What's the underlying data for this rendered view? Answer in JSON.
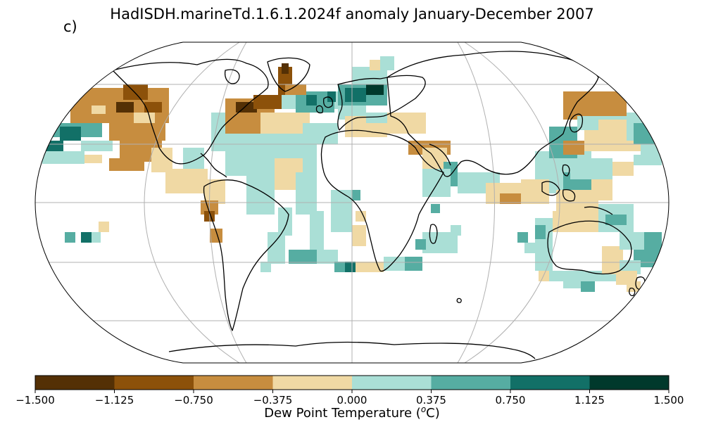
{
  "title": "HadISDH.marineTd.1.6.1.2024f anomaly January-December 2007",
  "panel_label": "c)",
  "colorbar": {
    "label_prefix": "Dew Point Temperature (",
    "label_sup": "o",
    "label_suffix": "C)",
    "ticks": [
      "−1.500",
      "−1.125",
      "−0.750",
      "−0.375",
      "0.000",
      "0.375",
      "0.750",
      "1.125",
      "1.500"
    ],
    "colors": [
      "#543005",
      "#8c510a",
      "#c78d3f",
      "#f0d9a4",
      "#aadfd6",
      "#56ada2",
      "#127067",
      "#00392c"
    ]
  }
}
